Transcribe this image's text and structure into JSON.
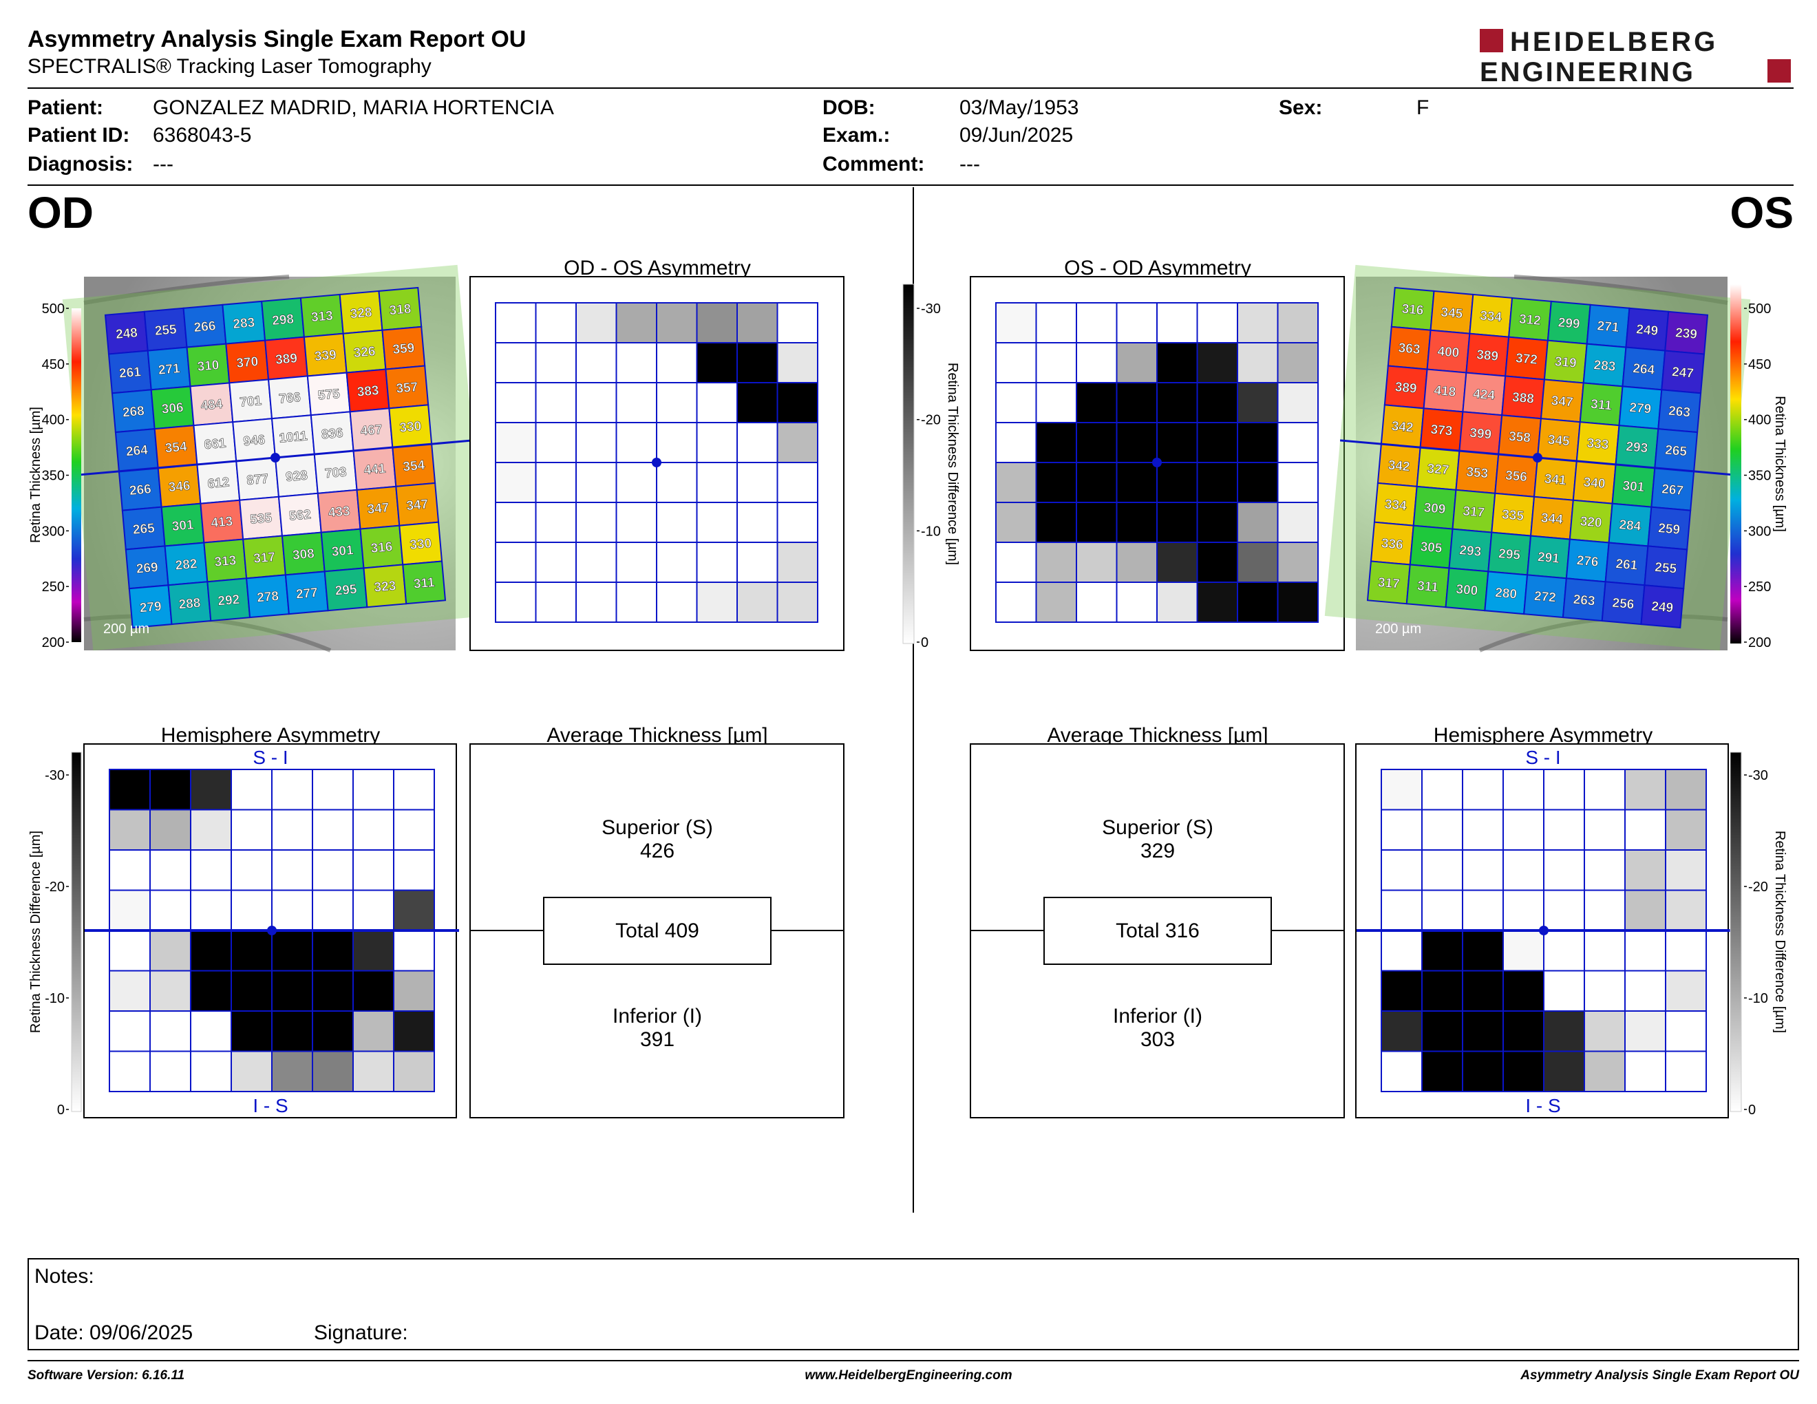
{
  "header": {
    "title": "Asymmetry Analysis Single Exam Report OU",
    "subtitle": "SPECTRALIS® Tracking Laser Tomography",
    "logo_line1": "HEIDELBERG",
    "logo_line2": "ENGINEERING",
    "brand_color": "#a4182c"
  },
  "patient": {
    "patient_label": "Patient:",
    "patient": "GONZALEZ MADRID, MARIA HORTENCIA",
    "id_label": "Patient ID:",
    "id": "6368043-5",
    "diagnosis_label": "Diagnosis:",
    "diagnosis": "---",
    "dob_label": "DOB:",
    "dob": "03/May/1953",
    "exam_label": "Exam.:",
    "exam": "09/Jun/2025",
    "comment_label": "Comment:",
    "comment": "---",
    "sex_label": "Sex:",
    "sex": "F"
  },
  "od": {
    "eye": "OD",
    "asym_title": "OD - OS Asymmetry",
    "hemi_title": "Hemisphere Asymmetry",
    "avg_title": "Average Thickness [µm]",
    "superior_label": "Superior (S)",
    "superior": "426",
    "total": "Total 409",
    "inferior_label": "Inferior (I)",
    "inferior": "391",
    "scale_bar": "200 µm",
    "thickness": [
      [
        248,
        255,
        266,
        283,
        298,
        313,
        328,
        318
      ],
      [
        261,
        271,
        310,
        370,
        389,
        339,
        326,
        359
      ],
      [
        268,
        306,
        484,
        701,
        766,
        575,
        383,
        357
      ],
      [
        264,
        354,
        661,
        946,
        1011,
        836,
        467,
        330
      ],
      [
        266,
        346,
        612,
        877,
        928,
        703,
        441,
        354
      ],
      [
        265,
        301,
        413,
        535,
        562,
        433,
        347,
        347
      ],
      [
        269,
        282,
        313,
        317,
        308,
        301,
        316,
        330
      ],
      [
        279,
        288,
        292,
        278,
        277,
        295,
        323,
        311
      ]
    ],
    "asym_grid": [
      [
        0,
        0,
        3,
        10,
        10,
        13,
        11,
        0
      ],
      [
        0,
        0,
        0,
        0,
        0,
        30,
        30,
        3
      ],
      [
        0,
        0,
        0,
        0,
        0,
        0,
        30,
        30
      ],
      [
        1,
        0,
        0,
        0,
        0,
        0,
        0,
        8
      ],
      [
        1,
        0,
        0,
        0,
        0,
        0,
        0,
        0
      ],
      [
        0,
        0,
        0,
        0,
        0,
        0,
        0,
        0
      ],
      [
        0,
        0,
        0,
        0,
        0,
        0,
        0,
        4
      ],
      [
        0,
        0,
        0,
        0,
        0,
        2,
        4,
        4
      ]
    ],
    "hemi_grid": [
      [
        30,
        30,
        25,
        0,
        0,
        0,
        0,
        0
      ],
      [
        7,
        9,
        3,
        0,
        0,
        0,
        0,
        0
      ],
      [
        0,
        0,
        0,
        0,
        0,
        0,
        0,
        0
      ],
      [
        1,
        0,
        0,
        0,
        0,
        0,
        0,
        22
      ],
      [
        0,
        6,
        30,
        30,
        30,
        30,
        25,
        0
      ],
      [
        2,
        4,
        30,
        30,
        30,
        30,
        30,
        9
      ],
      [
        0,
        0,
        0,
        30,
        30,
        30,
        8,
        27
      ],
      [
        0,
        0,
        0,
        4,
        14,
        15,
        4,
        6
      ]
    ]
  },
  "os": {
    "eye": "OS",
    "asym_title": "OS - OD Asymmetry",
    "hemi_title": "Hemisphere Asymmetry",
    "avg_title": "Average Thickness [µm]",
    "superior_label": "Superior (S)",
    "superior": "329",
    "total": "Total 316",
    "inferior_label": "Inferior (I)",
    "inferior": "303",
    "scale_bar": "200 µm",
    "thickness": [
      [
        316,
        345,
        334,
        312,
        299,
        271,
        249,
        239
      ],
      [
        363,
        400,
        389,
        372,
        319,
        283,
        264,
        247
      ],
      [
        389,
        418,
        424,
        388,
        347,
        311,
        279,
        263
      ],
      [
        342,
        373,
        399,
        358,
        345,
        333,
        293,
        265
      ],
      [
        342,
        327,
        353,
        356,
        341,
        340,
        301,
        267
      ],
      [
        334,
        309,
        317,
        335,
        344,
        320,
        284,
        259
      ],
      [
        336,
        305,
        293,
        295,
        291,
        276,
        261,
        255
      ],
      [
        317,
        311,
        300,
        280,
        272,
        263,
        256,
        249
      ]
    ],
    "asym_grid": [
      [
        1,
        0,
        0,
        0,
        0,
        0,
        4,
        6
      ],
      [
        0,
        0,
        0,
        10,
        30,
        27,
        4,
        9
      ],
      [
        0,
        0,
        30,
        30,
        30,
        30,
        24,
        2
      ],
      [
        0,
        30,
        30,
        30,
        30,
        30,
        30,
        0
      ],
      [
        8,
        30,
        30,
        30,
        30,
        30,
        30,
        0
      ],
      [
        8,
        30,
        30,
        30,
        30,
        30,
        11,
        2
      ],
      [
        0,
        8,
        6,
        9,
        25,
        30,
        18,
        9
      ],
      [
        0,
        8,
        0,
        0,
        3,
        28,
        30,
        29
      ]
    ],
    "hemi_grid": [
      [
        1,
        0,
        0,
        0,
        0,
        0,
        6,
        8
      ],
      [
        0,
        0,
        0,
        0,
        0,
        0,
        0,
        7
      ],
      [
        0,
        0,
        0,
        0,
        0,
        0,
        6,
        3
      ],
      [
        0,
        0,
        0,
        0,
        0,
        0,
        7,
        4
      ],
      [
        0,
        30,
        30,
        1,
        0,
        0,
        0,
        0
      ],
      [
        30,
        30,
        30,
        30,
        0,
        0,
        0,
        3
      ],
      [
        25,
        30,
        30,
        30,
        25,
        5,
        2,
        0
      ],
      [
        0,
        30,
        30,
        30,
        25,
        7,
        0,
        0
      ]
    ]
  },
  "scales": {
    "thickness_axis_title": "Retina Thickness [µm]",
    "thickness_ticks": [
      "500",
      "450",
      "400",
      "350",
      "300",
      "250",
      "200"
    ],
    "diff_axis_title": "Retina Thickness Difference [µm]",
    "diff_ticks": [
      "-30",
      "-20",
      "-10",
      "0"
    ],
    "hemi_top": "S - I",
    "hemi_bottom": "I - S",
    "grid_color": "#0a14c8"
  },
  "notes": {
    "notes_label": "Notes:",
    "date_label": "Date: 09/06/2025",
    "signature_label": "Signature:"
  },
  "footer": {
    "software": "Software Version: 6.16.11",
    "website": "www.HeidelbergEngineering.com",
    "report_name": "Asymmetry Analysis Single Exam Report OU"
  }
}
